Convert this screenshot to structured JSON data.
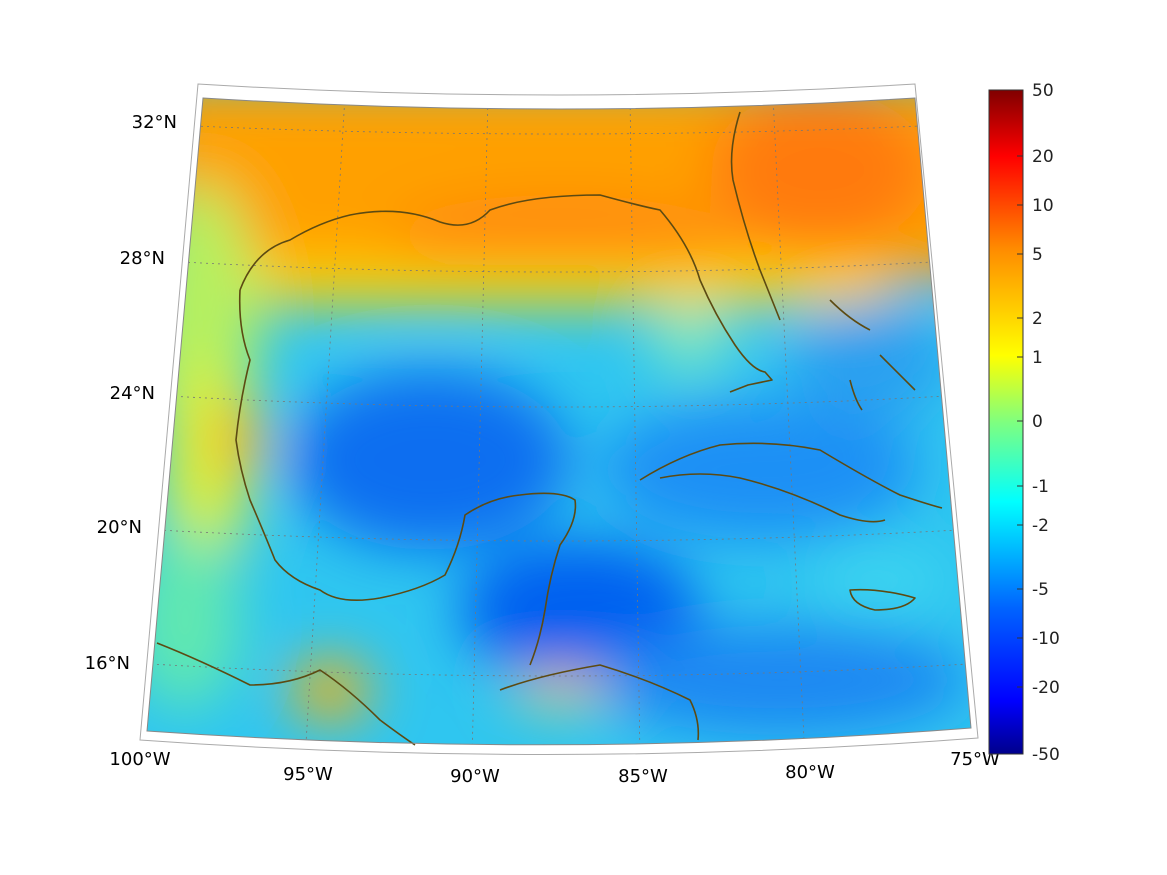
{
  "map": {
    "projection": "conic",
    "extent": {
      "lon": [
        -100,
        -75
      ],
      "lat": [
        14,
        33
      ]
    },
    "lon_ticks": [
      "100°W",
      "95°W",
      "90°W",
      "85°W",
      "80°W",
      "75°W"
    ],
    "lat_ticks": [
      "32°N",
      "28°N",
      "24°N",
      "20°N",
      "16°N"
    ],
    "coastline_color": "#5c4a12",
    "grid": "dotted"
  },
  "colorbar": {
    "colormap": "jet",
    "tick_labels": [
      "50",
      "20",
      "10",
      "5",
      "2",
      "1",
      "0",
      "-1",
      "-2",
      "-5",
      "-10",
      "-20",
      "-50"
    ],
    "colors": {
      "max": "#800000",
      "high": "#ff0000",
      "mid_high": "#ff8c00",
      "mid": "#ffff00",
      "zero": "#7fff7f",
      "mid_low": "#00ffff",
      "low": "#0064ff",
      "min": "#00008b"
    }
  }
}
